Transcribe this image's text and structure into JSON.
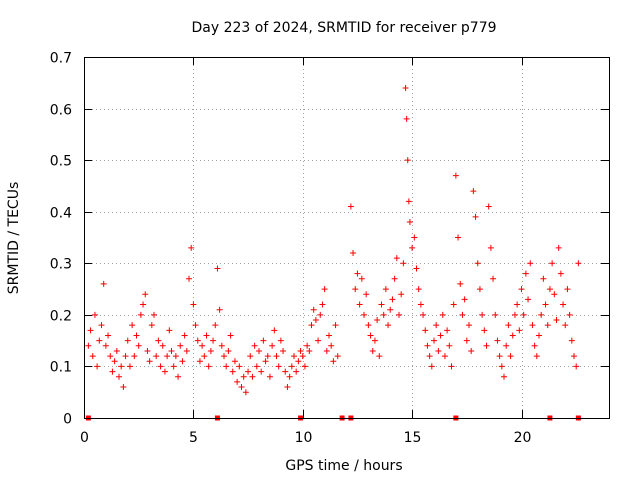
{
  "chart_data": {
    "type": "scatter",
    "title": "Day 223 of 2024, SRMTID for receiver p779",
    "xlabel": "GPS time / hours",
    "ylabel": "SRMTID / TECUs",
    "xlim": [
      0,
      24
    ],
    "ylim": [
      0,
      0.7
    ],
    "xticks": [
      0,
      5,
      10,
      15,
      20
    ],
    "yticks": [
      0,
      0.1,
      0.2,
      0.3,
      0.4,
      0.5,
      0.6,
      0.7
    ],
    "xtick_labels": [
      "0",
      "5",
      "10",
      "15",
      "20"
    ],
    "ytick_labels": [
      "0",
      "0.1",
      "0.2",
      "0.3",
      "0.4",
      "0.5",
      "0.6",
      "0.7"
    ],
    "grid": true,
    "marker": "plus",
    "color": "#ff0000",
    "series": [
      {
        "name": "SRMTID",
        "points": [
          [
            0.2,
            0.14
          ],
          [
            0.3,
            0.17
          ],
          [
            0.4,
            0.12
          ],
          [
            0.5,
            0.2
          ],
          [
            0.6,
            0.1
          ],
          [
            0.7,
            0.15
          ],
          [
            0.8,
            0.18
          ],
          [
            0.9,
            0.26
          ],
          [
            1.0,
            0.14
          ],
          [
            1.1,
            0.16
          ],
          [
            1.2,
            0.12
          ],
          [
            1.3,
            0.09
          ],
          [
            1.4,
            0.11
          ],
          [
            1.5,
            0.13
          ],
          [
            1.6,
            0.08
          ],
          [
            1.7,
            0.1
          ],
          [
            1.8,
            0.06
          ],
          [
            1.9,
            0.12
          ],
          [
            2.0,
            0.15
          ],
          [
            2.1,
            0.1
          ],
          [
            2.2,
            0.18
          ],
          [
            2.3,
            0.12
          ],
          [
            2.4,
            0.16
          ],
          [
            2.5,
            0.14
          ],
          [
            2.6,
            0.2
          ],
          [
            2.7,
            0.22
          ],
          [
            2.8,
            0.24
          ],
          [
            2.9,
            0.13
          ],
          [
            3.0,
            0.11
          ],
          [
            3.1,
            0.18
          ],
          [
            3.2,
            0.2
          ],
          [
            3.3,
            0.12
          ],
          [
            3.4,
            0.15
          ],
          [
            3.5,
            0.1
          ],
          [
            3.6,
            0.14
          ],
          [
            3.7,
            0.09
          ],
          [
            3.8,
            0.12
          ],
          [
            3.9,
            0.17
          ],
          [
            4.0,
            0.13
          ],
          [
            4.1,
            0.1
          ],
          [
            4.2,
            0.12
          ],
          [
            4.3,
            0.08
          ],
          [
            4.4,
            0.14
          ],
          [
            4.5,
            0.11
          ],
          [
            4.6,
            0.16
          ],
          [
            4.7,
            0.13
          ],
          [
            4.8,
            0.27
          ],
          [
            4.9,
            0.33
          ],
          [
            5.0,
            0.22
          ],
          [
            5.1,
            0.18
          ],
          [
            5.2,
            0.15
          ],
          [
            5.3,
            0.11
          ],
          [
            5.4,
            0.14
          ],
          [
            5.5,
            0.12
          ],
          [
            5.6,
            0.16
          ],
          [
            5.7,
            0.1
          ],
          [
            5.8,
            0.13
          ],
          [
            5.9,
            0.15
          ],
          [
            6.0,
            0.18
          ],
          [
            6.1,
            0.29
          ],
          [
            6.2,
            0.21
          ],
          [
            6.3,
            0.14
          ],
          [
            6.4,
            0.12
          ],
          [
            6.5,
            0.1
          ],
          [
            6.6,
            0.13
          ],
          [
            6.7,
            0.16
          ],
          [
            6.8,
            0.09
          ],
          [
            6.9,
            0.11
          ],
          [
            7.0,
            0.07
          ],
          [
            7.1,
            0.1
          ],
          [
            7.2,
            0.06
          ],
          [
            7.3,
            0.08
          ],
          [
            7.4,
            0.05
          ],
          [
            7.5,
            0.09
          ],
          [
            7.6,
            0.12
          ],
          [
            7.7,
            0.08
          ],
          [
            7.8,
            0.14
          ],
          [
            7.9,
            0.1
          ],
          [
            8.0,
            0.13
          ],
          [
            8.1,
            0.09
          ],
          [
            8.2,
            0.15
          ],
          [
            8.3,
            0.11
          ],
          [
            8.4,
            0.12
          ],
          [
            8.5,
            0.08
          ],
          [
            8.6,
            0.14
          ],
          [
            8.7,
            0.17
          ],
          [
            8.8,
            0.12
          ],
          [
            8.9,
            0.1
          ],
          [
            9.0,
            0.15
          ],
          [
            9.1,
            0.13
          ],
          [
            9.2,
            0.09
          ],
          [
            9.3,
            0.06
          ],
          [
            9.4,
            0.08
          ],
          [
            9.5,
            0.1
          ],
          [
            9.6,
            0.12
          ],
          [
            9.7,
            0.09
          ],
          [
            9.8,
            0.11
          ],
          [
            9.9,
            0.13
          ],
          [
            10.0,
            0.12
          ],
          [
            10.1,
            0.1
          ],
          [
            10.2,
            0.14
          ],
          [
            10.3,
            0.13
          ],
          [
            10.4,
            0.18
          ],
          [
            10.5,
            0.21
          ],
          [
            10.6,
            0.19
          ],
          [
            10.7,
            0.15
          ],
          [
            10.8,
            0.2
          ],
          [
            10.9,
            0.22
          ],
          [
            11.0,
            0.25
          ],
          [
            11.1,
            0.13
          ],
          [
            11.2,
            0.16
          ],
          [
            11.3,
            0.14
          ],
          [
            11.4,
            0.11
          ],
          [
            11.5,
            0.18
          ],
          [
            11.6,
            0.12
          ],
          [
            12.2,
            0.41
          ],
          [
            12.3,
            0.32
          ],
          [
            12.4,
            0.25
          ],
          [
            12.5,
            0.28
          ],
          [
            12.6,
            0.22
          ],
          [
            12.7,
            0.27
          ],
          [
            12.8,
            0.2
          ],
          [
            12.9,
            0.24
          ],
          [
            13.0,
            0.18
          ],
          [
            13.1,
            0.16
          ],
          [
            13.2,
            0.13
          ],
          [
            13.3,
            0.15
          ],
          [
            13.4,
            0.19
          ],
          [
            13.5,
            0.12
          ],
          [
            13.6,
            0.22
          ],
          [
            13.7,
            0.2
          ],
          [
            13.8,
            0.25
          ],
          [
            13.9,
            0.18
          ],
          [
            14.0,
            0.21
          ],
          [
            14.1,
            0.23
          ],
          [
            14.2,
            0.27
          ],
          [
            14.3,
            0.31
          ],
          [
            14.4,
            0.2
          ],
          [
            14.5,
            0.24
          ],
          [
            14.6,
            0.3
          ],
          [
            14.7,
            0.64
          ],
          [
            14.75,
            0.58
          ],
          [
            14.8,
            0.5
          ],
          [
            14.85,
            0.42
          ],
          [
            14.9,
            0.38
          ],
          [
            15.0,
            0.33
          ],
          [
            15.1,
            0.35
          ],
          [
            15.2,
            0.29
          ],
          [
            15.3,
            0.25
          ],
          [
            15.4,
            0.22
          ],
          [
            15.5,
            0.2
          ],
          [
            15.6,
            0.17
          ],
          [
            15.7,
            0.14
          ],
          [
            15.8,
            0.12
          ],
          [
            15.9,
            0.1
          ],
          [
            16.0,
            0.15
          ],
          [
            16.1,
            0.18
          ],
          [
            16.2,
            0.13
          ],
          [
            16.3,
            0.16
          ],
          [
            16.4,
            0.2
          ],
          [
            16.5,
            0.12
          ],
          [
            16.6,
            0.17
          ],
          [
            16.7,
            0.14
          ],
          [
            16.8,
            0.1
          ],
          [
            16.9,
            0.22
          ],
          [
            17.0,
            0.47
          ],
          [
            17.1,
            0.35
          ],
          [
            17.2,
            0.26
          ],
          [
            17.3,
            0.2
          ],
          [
            17.4,
            0.23
          ],
          [
            17.5,
            0.15
          ],
          [
            17.6,
            0.18
          ],
          [
            17.7,
            0.13
          ],
          [
            17.8,
            0.44
          ],
          [
            17.9,
            0.39
          ],
          [
            18.0,
            0.3
          ],
          [
            18.1,
            0.25
          ],
          [
            18.2,
            0.2
          ],
          [
            18.3,
            0.17
          ],
          [
            18.4,
            0.14
          ],
          [
            18.5,
            0.41
          ],
          [
            18.6,
            0.33
          ],
          [
            18.7,
            0.27
          ],
          [
            18.8,
            0.2
          ],
          [
            18.9,
            0.15
          ],
          [
            19.0,
            0.12
          ],
          [
            19.1,
            0.1
          ],
          [
            19.2,
            0.08
          ],
          [
            19.3,
            0.14
          ],
          [
            19.4,
            0.18
          ],
          [
            19.5,
            0.12
          ],
          [
            19.6,
            0.16
          ],
          [
            19.7,
            0.2
          ],
          [
            19.8,
            0.22
          ],
          [
            19.9,
            0.17
          ],
          [
            20.0,
            0.25
          ],
          [
            20.1,
            0.2
          ],
          [
            20.2,
            0.28
          ],
          [
            20.3,
            0.23
          ],
          [
            20.4,
            0.3
          ],
          [
            20.5,
            0.18
          ],
          [
            20.6,
            0.14
          ],
          [
            20.7,
            0.12
          ],
          [
            20.8,
            0.16
          ],
          [
            20.9,
            0.2
          ],
          [
            21.0,
            0.27
          ],
          [
            21.1,
            0.22
          ],
          [
            21.2,
            0.18
          ],
          [
            21.3,
            0.25
          ],
          [
            21.4,
            0.3
          ],
          [
            21.5,
            0.24
          ],
          [
            21.6,
            0.19
          ],
          [
            21.7,
            0.33
          ],
          [
            21.8,
            0.28
          ],
          [
            21.9,
            0.22
          ],
          [
            22.0,
            0.18
          ],
          [
            22.1,
            0.25
          ],
          [
            22.2,
            0.2
          ],
          [
            22.3,
            0.15
          ],
          [
            22.4,
            0.12
          ],
          [
            22.5,
            0.1
          ],
          [
            22.6,
            0.3
          ]
        ]
      }
    ],
    "gap_markers_x": [
      0.2,
      6.1,
      9.9,
      11.8,
      12.2,
      17.0,
      21.3,
      22.6
    ]
  }
}
